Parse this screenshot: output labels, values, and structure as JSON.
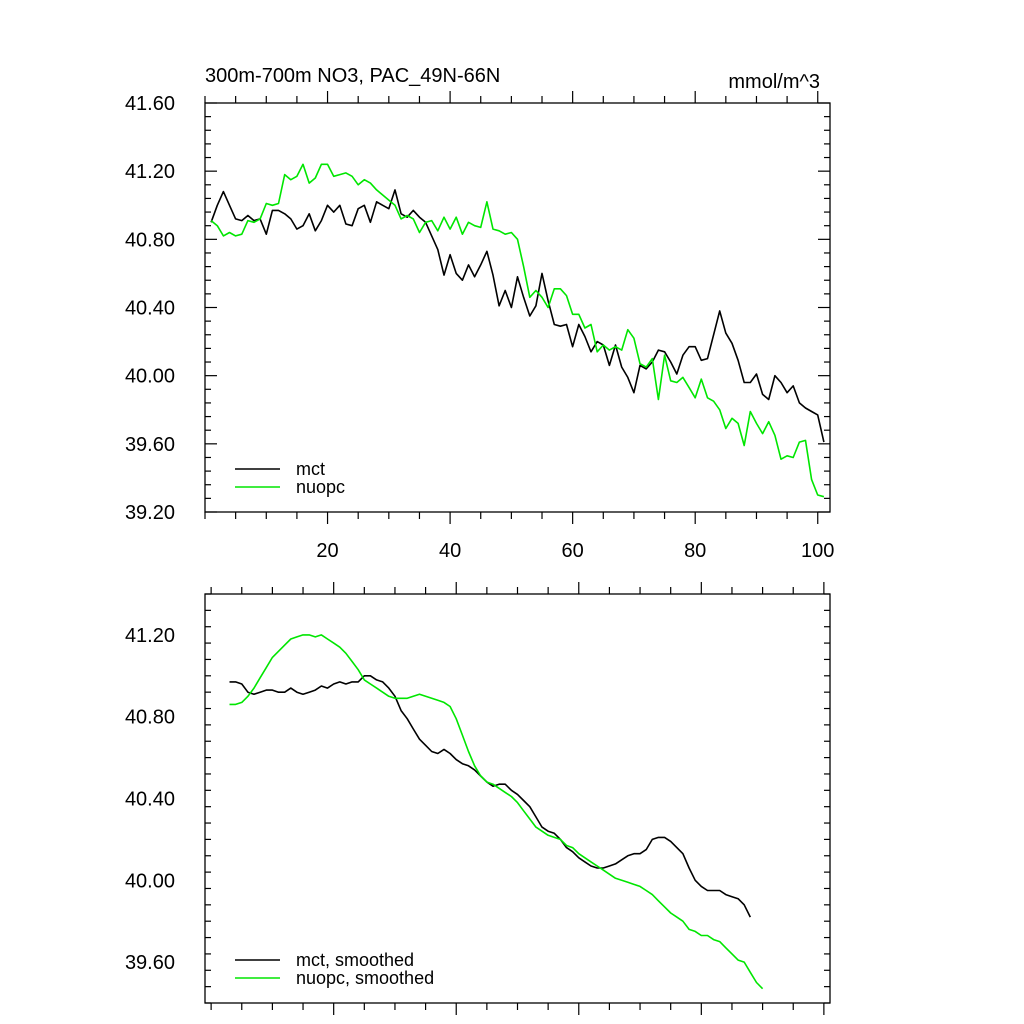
{
  "colors": {
    "mct": "#000000",
    "nuopc": "#00e600",
    "axis": "#000000",
    "background": "#ffffff"
  },
  "chart_data": [
    {
      "type": "line",
      "title_left": "300m-700m NO3, PAC_49N-66N",
      "title_right": "mmol/m^3",
      "xlim": [
        0,
        102
      ],
      "ylim": [
        39.2,
        41.6
      ],
      "x_ticks": [
        20,
        40,
        60,
        80,
        100
      ],
      "x_tick_labels": [
        "20",
        "40",
        "60",
        "80",
        "100"
      ],
      "y_ticks": [
        39.2,
        39.6,
        40.0,
        40.4,
        40.8,
        41.2,
        41.6
      ],
      "y_tick_labels": [
        "39.20",
        "39.60",
        "40.00",
        "40.40",
        "40.80",
        "41.20",
        "41.60"
      ],
      "legend_position": "bottom-left",
      "series": [
        {
          "name": "mct",
          "color": "#000000",
          "x_start": 1,
          "values": [
            40.9,
            41.0,
            41.08,
            41.0,
            40.92,
            40.91,
            40.94,
            40.91,
            40.92,
            40.83,
            40.97,
            40.97,
            40.95,
            40.92,
            40.86,
            40.88,
            40.95,
            40.85,
            40.91,
            41.0,
            40.96,
            41.0,
            40.89,
            40.88,
            40.98,
            41.0,
            40.9,
            41.02,
            41.0,
            40.98,
            41.09,
            40.95,
            40.93,
            40.97,
            40.93,
            40.9,
            40.82,
            40.74,
            40.59,
            40.71,
            40.6,
            40.56,
            40.65,
            40.58,
            40.65,
            40.73,
            40.59,
            40.41,
            40.5,
            40.4,
            40.58,
            40.46,
            40.35,
            40.41,
            40.6,
            40.44,
            40.3,
            40.29,
            40.3,
            40.17,
            40.3,
            40.23,
            40.14,
            40.2,
            40.18,
            40.06,
            40.18,
            40.05,
            39.99,
            39.9,
            40.06,
            40.04,
            40.08,
            40.15,
            40.14,
            40.08,
            40.01,
            40.12,
            40.17,
            40.17,
            40.09,
            40.1,
            40.24,
            40.38,
            40.25,
            40.19,
            40.09,
            39.96,
            39.96,
            40.01,
            39.89,
            39.86,
            40.0,
            39.96,
            39.9,
            39.94,
            39.84,
            39.81,
            39.79,
            39.77,
            39.61
          ]
        },
        {
          "name": "nuopc",
          "color": "#00e600",
          "x_start": 1,
          "values": [
            40.91,
            40.88,
            40.82,
            40.84,
            40.82,
            40.83,
            40.91,
            40.9,
            40.92,
            41.01,
            41.0,
            41.01,
            41.18,
            41.15,
            41.17,
            41.24,
            41.13,
            41.16,
            41.24,
            41.24,
            41.17,
            41.18,
            41.19,
            41.17,
            41.12,
            41.15,
            41.13,
            41.09,
            41.06,
            41.03,
            41.0,
            40.92,
            40.94,
            40.92,
            40.84,
            40.9,
            40.91,
            40.85,
            40.93,
            40.86,
            40.93,
            40.83,
            40.9,
            40.88,
            40.87,
            41.02,
            40.86,
            40.85,
            40.83,
            40.84,
            40.8,
            40.64,
            40.46,
            40.5,
            40.46,
            40.4,
            40.51,
            40.51,
            40.47,
            40.36,
            40.36,
            40.28,
            40.3,
            40.14,
            40.18,
            40.15,
            40.17,
            40.15,
            40.27,
            40.22,
            40.07,
            40.05,
            40.1,
            39.86,
            40.12,
            39.97,
            39.96,
            39.99,
            39.93,
            39.87,
            39.98,
            39.87,
            39.85,
            39.8,
            39.69,
            39.75,
            39.72,
            39.59,
            39.79,
            39.72,
            39.66,
            39.73,
            39.65,
            39.51,
            39.53,
            39.52,
            39.61,
            39.62,
            39.39,
            39.3,
            39.29
          ]
        }
      ]
    },
    {
      "type": "line",
      "xlim": [
        -1,
        101
      ],
      "ylim": [
        39.4,
        41.4
      ],
      "x_ticks": [
        20,
        40,
        60,
        80,
        100
      ],
      "y_ticks": [
        39.6,
        40.0,
        40.4,
        40.8,
        41.2
      ],
      "y_tick_labels": [
        "39.60",
        "40.00",
        "40.40",
        "40.80",
        "41.20"
      ],
      "legend_position": "bottom-left",
      "series": [
        {
          "name": "mct, smoothed",
          "color": "#000000",
          "x_start": 3,
          "values": [
            40.97,
            40.97,
            40.96,
            40.92,
            40.91,
            40.92,
            40.93,
            40.93,
            40.92,
            40.92,
            40.94,
            40.92,
            40.91,
            40.92,
            40.93,
            40.95,
            40.94,
            40.96,
            40.97,
            40.96,
            40.97,
            40.97,
            41.0,
            41.0,
            40.98,
            40.97,
            40.94,
            40.9,
            40.83,
            40.79,
            40.74,
            40.69,
            40.66,
            40.63,
            40.62,
            40.64,
            40.62,
            40.59,
            40.57,
            40.56,
            40.54,
            40.51,
            40.48,
            40.46,
            40.47,
            40.47,
            40.44,
            40.42,
            40.39,
            40.36,
            40.31,
            40.26,
            40.24,
            40.23,
            40.2,
            40.16,
            40.14,
            40.11,
            40.09,
            40.07,
            40.06,
            40.06,
            40.07,
            40.08,
            40.1,
            40.12,
            40.13,
            40.13,
            40.15,
            40.2,
            40.21,
            40.21,
            40.19,
            40.16,
            40.13,
            40.06,
            40.0,
            39.97,
            39.95,
            39.95,
            39.95,
            39.93,
            39.92,
            39.91,
            39.88,
            39.82
          ]
        },
        {
          "name": "nuopc, smoothed",
          "color": "#00e600",
          "x_start": 3,
          "values": [
            40.86,
            40.86,
            40.87,
            40.9,
            40.94,
            40.99,
            41.04,
            41.09,
            41.12,
            41.15,
            41.18,
            41.19,
            41.2,
            41.2,
            41.19,
            41.2,
            41.18,
            41.16,
            41.14,
            41.11,
            41.07,
            41.03,
            40.98,
            40.96,
            40.94,
            40.92,
            40.9,
            40.89,
            40.89,
            40.89,
            40.9,
            40.91,
            40.9,
            40.89,
            40.88,
            40.87,
            40.85,
            40.79,
            40.71,
            40.63,
            40.56,
            40.51,
            40.48,
            40.47,
            40.45,
            40.43,
            40.41,
            40.38,
            40.34,
            40.3,
            40.26,
            40.24,
            40.22,
            40.21,
            40.2,
            40.17,
            40.16,
            40.13,
            40.11,
            40.09,
            40.07,
            40.05,
            40.03,
            40.01,
            40.0,
            39.99,
            39.98,
            39.97,
            39.95,
            39.93,
            39.9,
            39.87,
            39.84,
            39.82,
            39.8,
            39.76,
            39.75,
            39.73,
            39.73,
            39.71,
            39.7,
            39.67,
            39.64,
            39.61,
            39.6,
            39.55,
            39.5,
            39.47
          ]
        }
      ]
    }
  ]
}
